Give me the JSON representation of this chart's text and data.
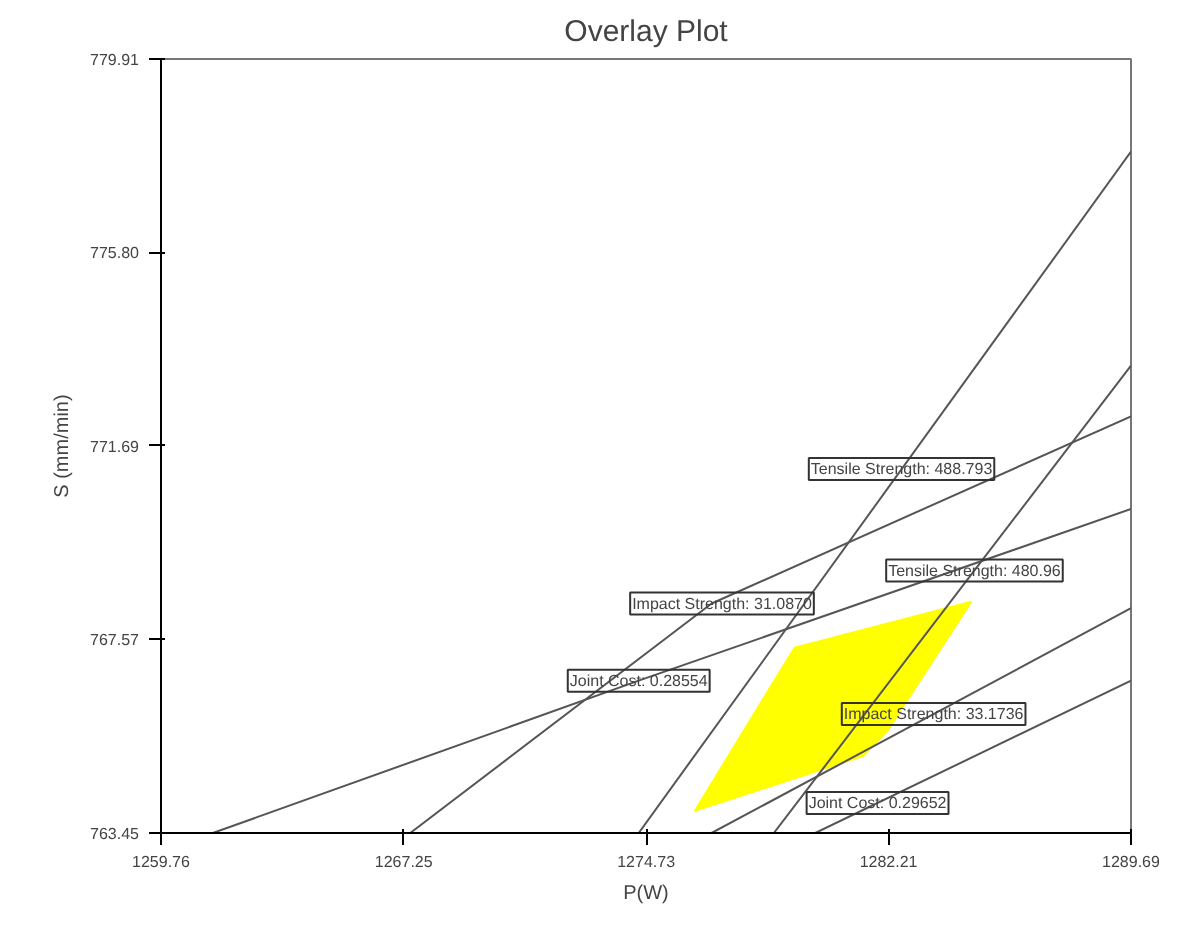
{
  "chart_data": {
    "type": "line",
    "title": "Overlay Plot",
    "xlabel": "P(W)",
    "ylabel": "S (mm/min)",
    "xlim": [
      1259.76,
      1289.69
    ],
    "ylim": [
      763.45,
      779.91
    ],
    "xticks": [
      1259.76,
      1267.25,
      1274.73,
      1282.21,
      1289.69
    ],
    "yticks": [
      763.45,
      767.57,
      771.69,
      {
        "value": 775.8,
        "label": "775.80"
      },
      779.91
    ],
    "grid": false,
    "line_style": "solid",
    "marker": "none",
    "series": [
      {
        "type": "area",
        "color": "#ffff00",
        "x": [
          1276.23,
          1279.31,
          1284.76,
          1282.2,
          1281.43
        ],
        "values": [
          763.92,
          767.39,
          768.37,
          765.65,
          765.09
        ]
      },
      {
        "color": "#555555",
        "x": [
          1261.36,
          1274.5,
          1289.69
        ],
        "values": [
          763.45,
          766.69,
          770.34
        ]
      },
      {
        "color": "#555555",
        "x": [
          1267.45,
          1276.75,
          1289.69
        ],
        "values": [
          763.45,
          768.33,
          772.31
        ]
      },
      {
        "color": "#555555",
        "x": [
          1274.5,
          1289.69
        ],
        "values": [
          763.45,
          777.94
        ]
      },
      {
        "color": "#555555",
        "x": [
          1278.67,
          1289.69
        ],
        "values": [
          763.45,
          773.39
        ]
      },
      {
        "color": "#555555",
        "x": [
          1276.75,
          1289.69
        ],
        "values": [
          763.45,
          768.23
        ]
      },
      {
        "color": "#555555",
        "x": [
          1279.95,
          1289.69
        ],
        "values": [
          763.45,
          766.69
        ]
      }
    ],
    "annotations": [
      {
        "text": "Tensile Strength: 488.793",
        "x": 1282.61,
        "y": 771.19
      },
      {
        "text": "Tensile Strength: 480.96",
        "x": 1284.86,
        "y": 769.03
      },
      {
        "text": "Impact Strength: 31.0870",
        "x": 1277.07,
        "y": 768.33
      },
      {
        "text": "Joint Cost: 0.28554",
        "x": 1274.5,
        "y": 766.69
      },
      {
        "text": "Impact Strength: 33.1736",
        "x": 1283.6,
        "y": 765.98
      },
      {
        "text": "Joint Cost: 0.29652",
        "x": 1281.87,
        "y": 764.09
      }
    ]
  }
}
